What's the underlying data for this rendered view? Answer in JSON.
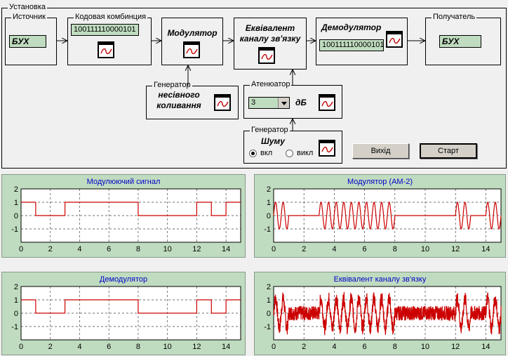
{
  "setup": {
    "title": "Установка",
    "source": {
      "title": "Источник",
      "value": "БУХ"
    },
    "code": {
      "title": "Кодовая комбинция",
      "value": "100111110000101"
    },
    "modulator": {
      "title": "Модулятор"
    },
    "channel": {
      "title": "Еквівалент каналу зв'язку"
    },
    "demodulator": {
      "title": "Демодулятор",
      "value": "100111110000101"
    },
    "receiver": {
      "title": "Получатель",
      "value": "БУХ"
    },
    "carrier": {
      "title": "Генератор",
      "label": "несівного коливання"
    },
    "attenuator": {
      "title": "Атенюатор",
      "value": "3",
      "unit": "дБ"
    },
    "noise": {
      "title": "Генератор",
      "label": "Шуму",
      "on_label": "вкл",
      "off_label": "викл",
      "selected": "on"
    },
    "exit_label": "Вихід",
    "start_label": "Старт"
  },
  "chart_data": [
    {
      "type": "line",
      "title": "Модулюючий сигнал",
      "xlim": [
        0,
        15
      ],
      "ylim": [
        -2,
        2
      ],
      "xticks": [
        0,
        2,
        4,
        6,
        8,
        10,
        12,
        14
      ],
      "yticks": [
        2,
        1,
        0,
        -1
      ],
      "grid": true,
      "color": "#cc0000",
      "signal": "digital",
      "bits": [
        1,
        0,
        0,
        1,
        1,
        1,
        1,
        1,
        0,
        0,
        0,
        0,
        1,
        0,
        1
      ]
    },
    {
      "type": "line",
      "title": "Модулятор (АМ-2)",
      "xlim": [
        0,
        15
      ],
      "ylim": [
        -2,
        2
      ],
      "xticks": [
        0,
        2,
        4,
        6,
        8,
        10,
        12,
        14
      ],
      "yticks": [
        2,
        1,
        0,
        -1
      ],
      "grid": true,
      "color": "#cc0000",
      "signal": "am",
      "bits": [
        1,
        0,
        0,
        1,
        1,
        1,
        1,
        1,
        0,
        0,
        0,
        0,
        1,
        0,
        1
      ]
    },
    {
      "type": "line",
      "title": "Демодулятор",
      "xlim": [
        0,
        15
      ],
      "ylim": [
        -2,
        2
      ],
      "xticks": [
        0,
        2,
        4,
        6,
        8,
        10,
        12,
        14
      ],
      "yticks": [
        2,
        1,
        0,
        -1
      ],
      "grid": true,
      "color": "#cc0000",
      "signal": "digital",
      "bits": [
        1,
        0,
        0,
        1,
        1,
        1,
        1,
        1,
        0,
        0,
        0,
        0,
        1,
        0,
        1
      ]
    },
    {
      "type": "line",
      "title": "Еквівалент каналу зв'язку",
      "xlim": [
        0,
        15
      ],
      "ylim": [
        -2,
        2
      ],
      "xticks": [
        0,
        2,
        4,
        6,
        8,
        10,
        12,
        14
      ],
      "yticks": [
        2,
        1,
        0,
        -1
      ],
      "grid": true,
      "color": "#cc0000",
      "signal": "noisy",
      "bits": [
        1,
        0,
        0,
        1,
        1,
        1,
        1,
        1,
        0,
        0,
        0,
        0,
        1,
        0,
        1
      ]
    }
  ]
}
